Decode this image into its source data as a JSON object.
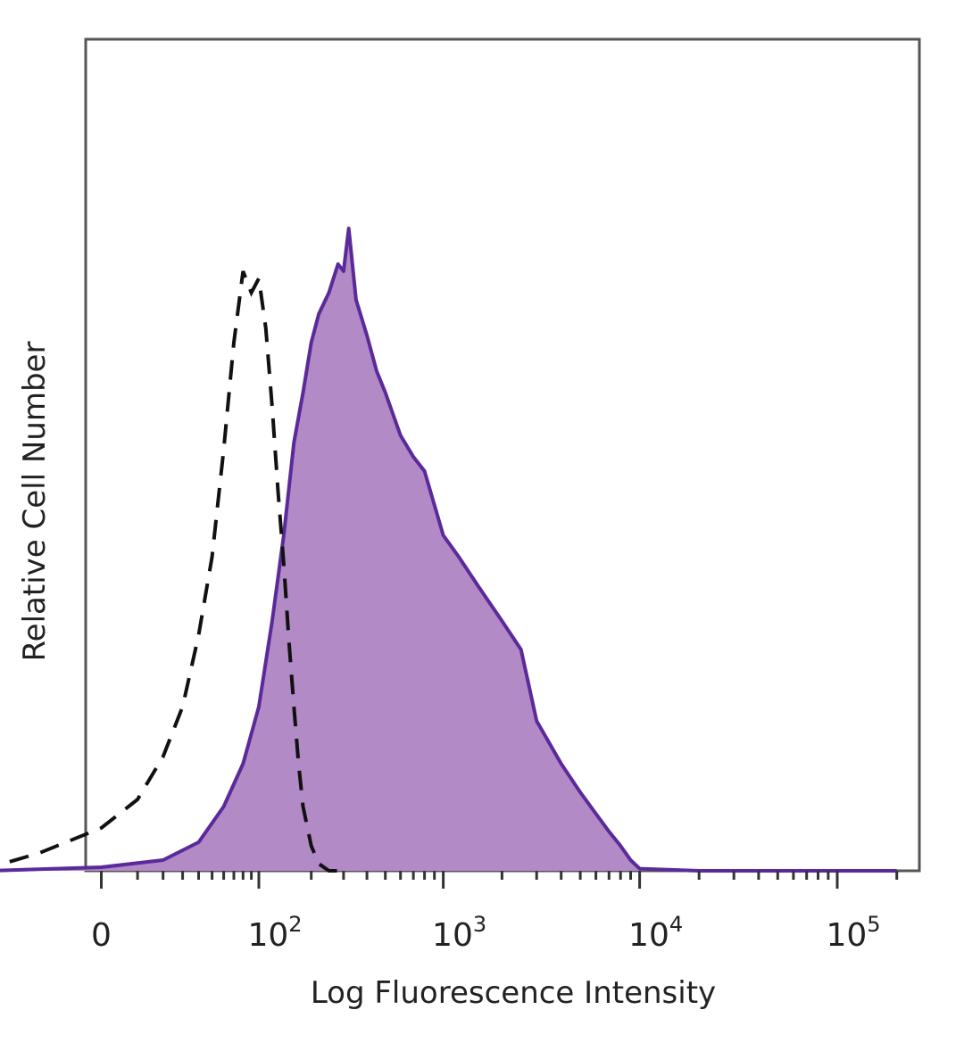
{
  "chart_data": {
    "type": "area",
    "xlabel": "Log Fluorescence Intensity",
    "ylabel": "Relative Cell Number",
    "x_scale": "biexponential",
    "x_ticks": [
      {
        "value": 0,
        "base": "0",
        "exp": ""
      },
      {
        "value": 100,
        "base": "10",
        "exp": "2"
      },
      {
        "value": 1000,
        "base": "10",
        "exp": "3"
      },
      {
        "value": 10000,
        "base": "10",
        "exp": "4"
      },
      {
        "value": 100000,
        "base": "10",
        "exp": "5"
      }
    ],
    "ylim": [
      0,
      100
    ],
    "grid": false,
    "legend": "none",
    "colors": {
      "filled": "#b18ac6",
      "filled_line": "#5a2a9a",
      "control_line": "#111111"
    },
    "series": [
      {
        "style": "filled",
        "x": [
          -50,
          0,
          20,
          40,
          60,
          80,
          100,
          120,
          140,
          160,
          180,
          200,
          220,
          250,
          280,
          300,
          320,
          350,
          400,
          450,
          500,
          600,
          700,
          800,
          1000,
          1200,
          1500,
          2000,
          2500,
          3000,
          4000,
          5000,
          6000,
          7000,
          8000,
          9000,
          10000,
          20000,
          50000,
          100000,
          200000
        ],
        "y": [
          0,
          0.5,
          1.5,
          4,
          9,
          15,
          23,
          35,
          47,
          60,
          67,
          74,
          78,
          81,
          85,
          84,
          90,
          80,
          75,
          70,
          67,
          61,
          58,
          56,
          47,
          44,
          40,
          35,
          31,
          21,
          15,
          11,
          8,
          5.5,
          3.5,
          1.5,
          0.3,
          0,
          0,
          0,
          0
        ]
      },
      {
        "style": "dashed",
        "x": [
          -60,
          -20,
          0,
          10,
          20,
          30,
          40,
          50,
          60,
          70,
          80,
          90,
          100,
          110,
          120,
          130,
          140,
          150,
          160,
          170,
          180,
          200,
          220,
          250,
          300
        ],
        "y": [
          0,
          2.5,
          6,
          10,
          16,
          23,
          33,
          44,
          59,
          74,
          84,
          81,
          83,
          76,
          65,
          53,
          43,
          32,
          23,
          15,
          9,
          3.5,
          1,
          0,
          0
        ]
      }
    ]
  }
}
